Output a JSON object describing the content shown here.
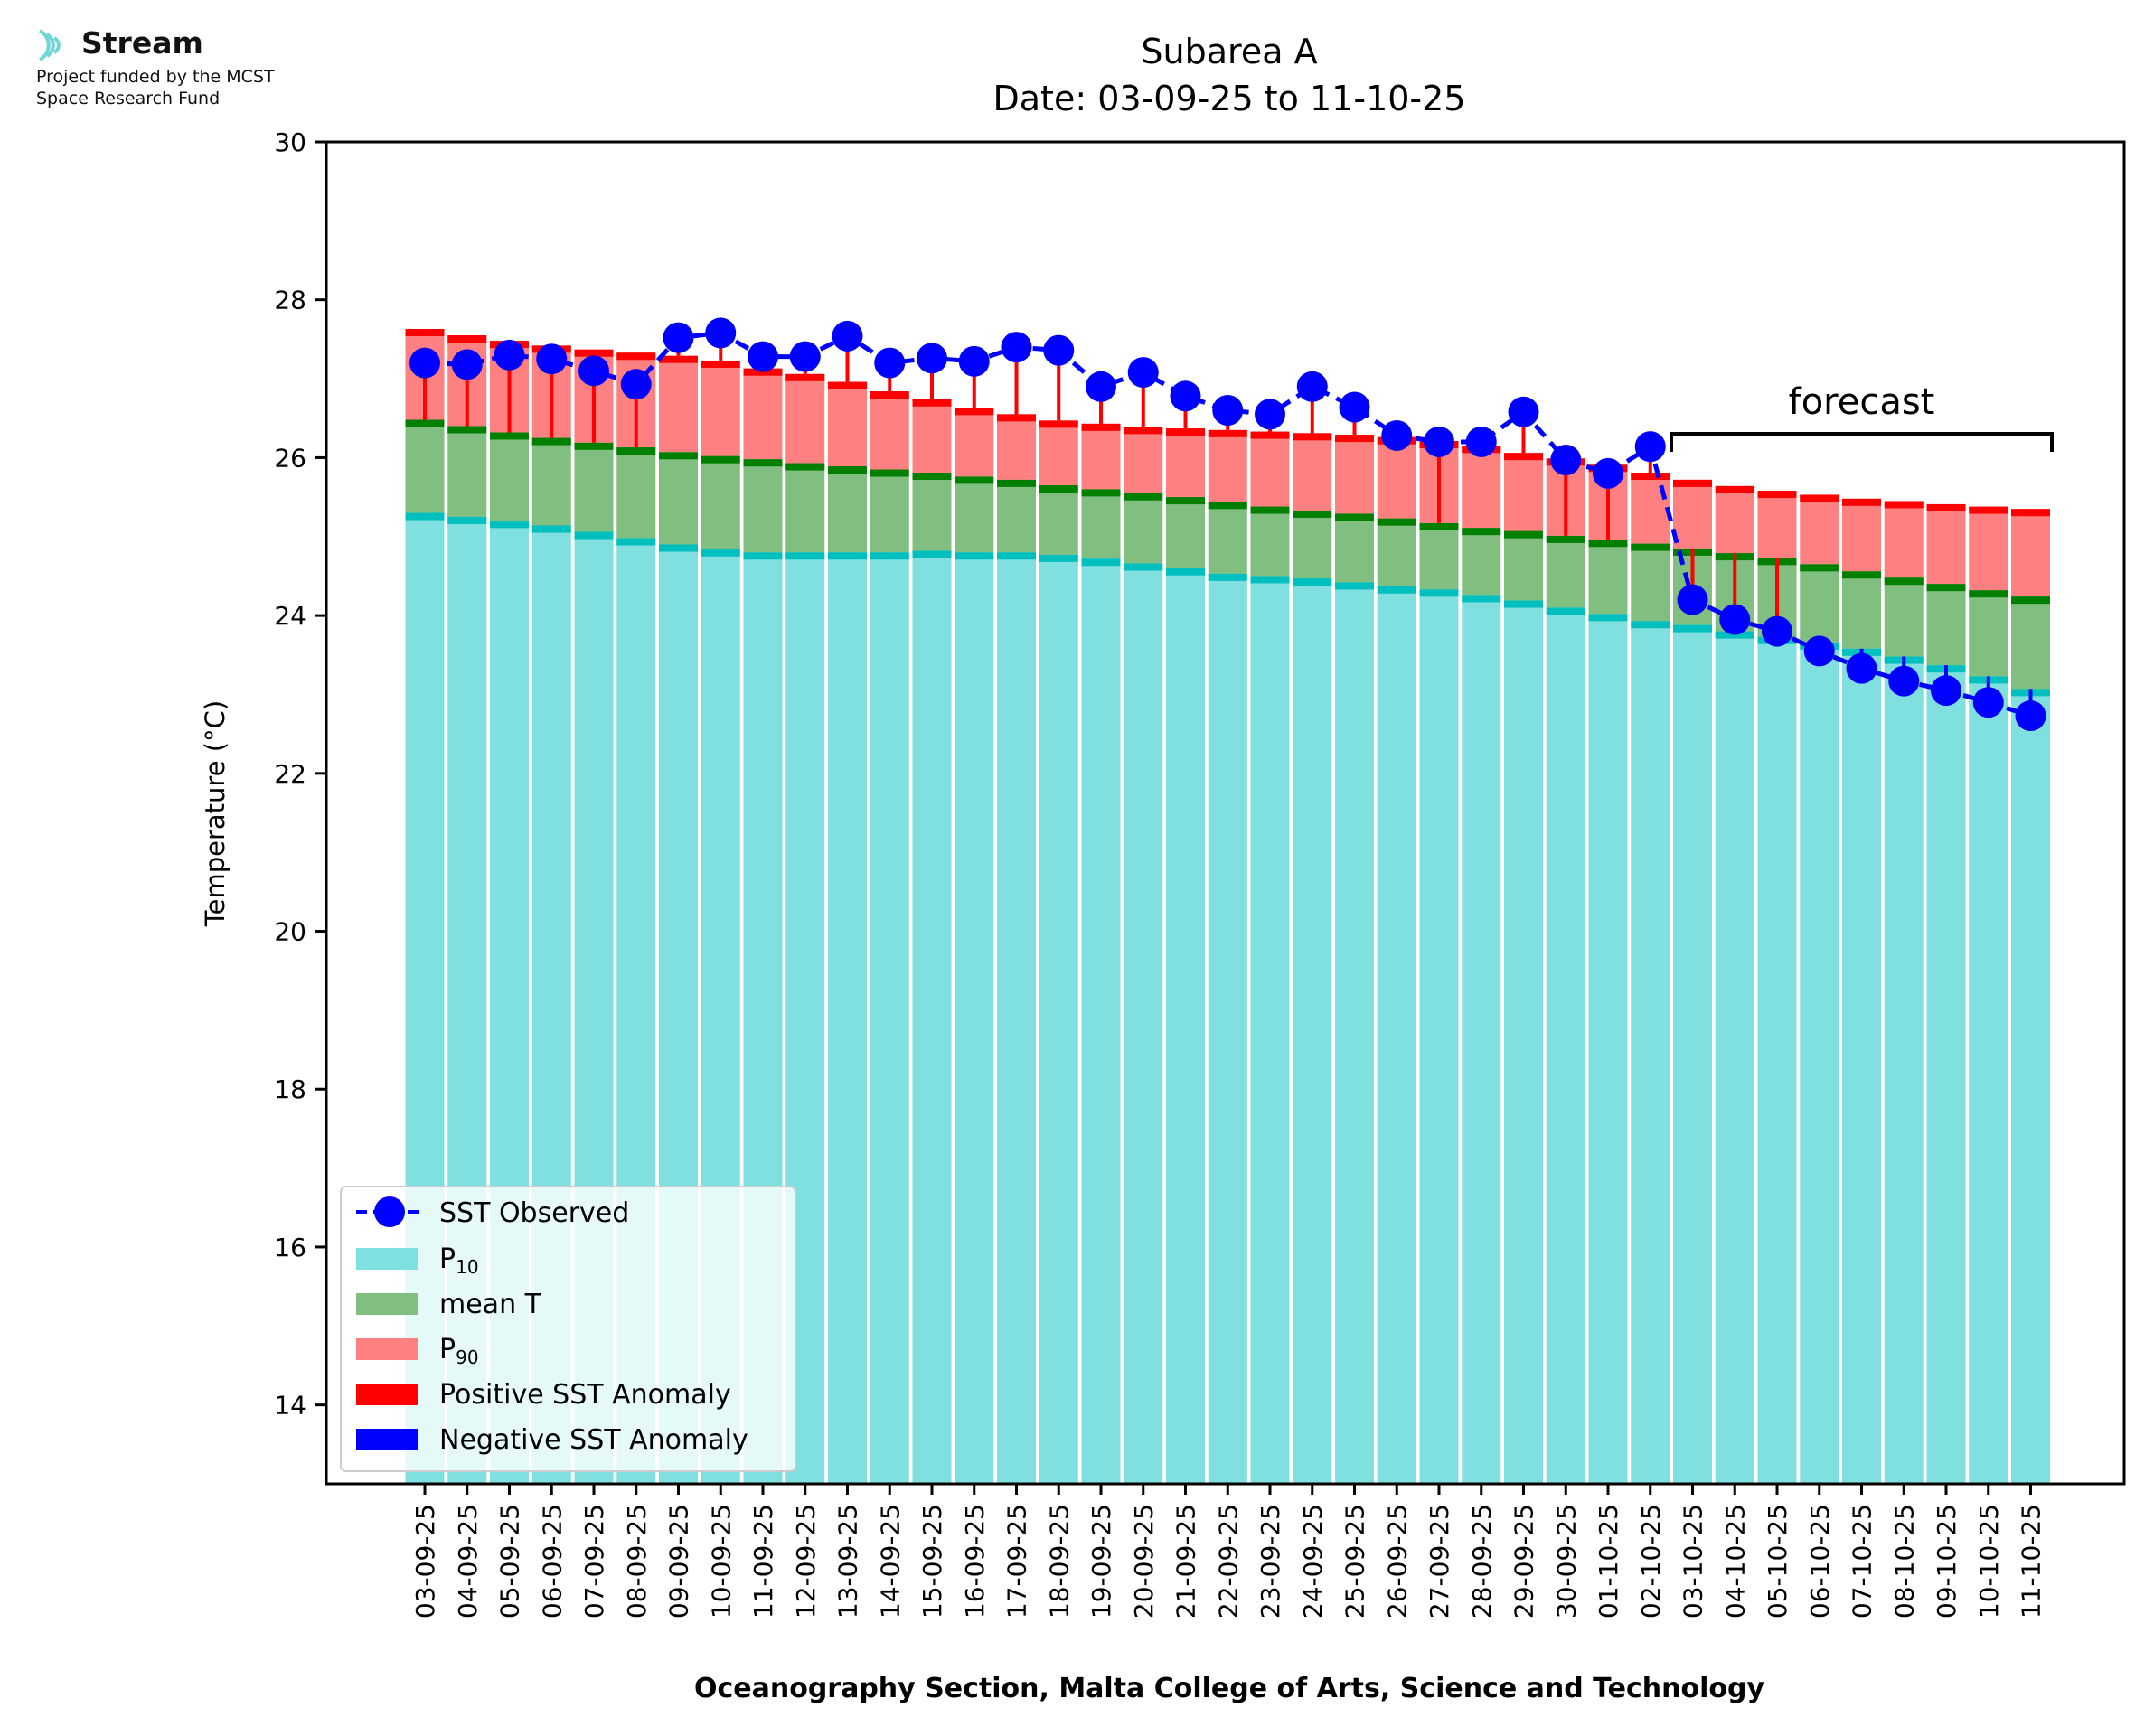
{
  "logo": {
    "name": "Stream",
    "funding_line1": "Project funded by the MCST",
    "funding_line2": "Space Research Fund"
  },
  "chart_data": {
    "type": "bar",
    "title": "Subarea A",
    "subtitle": "Date: 03-09-25 to 11-10-25",
    "xlabel": "Oceanography Section, Malta College of Arts, Science and Technology",
    "ylabel": "Temperature (°C)",
    "ylim": [
      13,
      30
    ],
    "yticks": [
      14,
      16,
      18,
      20,
      22,
      24,
      26,
      28,
      30
    ],
    "grid": false,
    "legend_position": "bottom-left",
    "forecast_label": "forecast",
    "forecast_range": [
      "03-10-25",
      "11-10-25"
    ],
    "categories": [
      "03-09-25",
      "04-09-25",
      "05-09-25",
      "06-09-25",
      "07-09-25",
      "08-09-25",
      "09-09-25",
      "10-09-25",
      "11-09-25",
      "12-09-25",
      "13-09-25",
      "14-09-25",
      "15-09-25",
      "16-09-25",
      "17-09-25",
      "18-09-25",
      "19-09-25",
      "20-09-25",
      "21-09-25",
      "22-09-25",
      "23-09-25",
      "24-09-25",
      "25-09-25",
      "26-09-25",
      "27-09-25",
      "28-09-25",
      "29-09-25",
      "30-09-25",
      "01-10-25",
      "02-10-25",
      "03-10-25",
      "04-10-25",
      "05-10-25",
      "06-10-25",
      "07-10-25",
      "08-10-25",
      "09-10-25",
      "10-10-25",
      "11-10-25"
    ],
    "series": [
      {
        "name": "SST Observed",
        "values": [
          27.2,
          27.18,
          27.3,
          27.25,
          27.1,
          26.93,
          27.52,
          27.58,
          27.28,
          27.28,
          27.54,
          27.2,
          27.26,
          27.22,
          27.4,
          27.36,
          26.9,
          27.08,
          26.78,
          26.6,
          26.55,
          26.9,
          26.64,
          26.28,
          26.2,
          26.2,
          26.58,
          25.97,
          25.8,
          26.14,
          24.2,
          23.95,
          23.8,
          23.55,
          23.33,
          23.17,
          23.05,
          22.9,
          22.73
        ]
      },
      {
        "name": "P10",
        "values": [
          25.3,
          25.25,
          25.2,
          25.14,
          25.06,
          24.98,
          24.9,
          24.84,
          24.8,
          24.8,
          24.8,
          24.8,
          24.82,
          24.8,
          24.8,
          24.77,
          24.72,
          24.66,
          24.6,
          24.53,
          24.5,
          24.47,
          24.42,
          24.37,
          24.33,
          24.26,
          24.19,
          24.1,
          24.02,
          23.93,
          23.88,
          23.8,
          23.73,
          23.66,
          23.58,
          23.48,
          23.37,
          23.23,
          23.07
        ]
      },
      {
        "name": "mean T",
        "values": [
          26.48,
          26.4,
          26.32,
          26.25,
          26.19,
          26.13,
          26.07,
          26.02,
          25.98,
          25.93,
          25.89,
          25.85,
          25.81,
          25.76,
          25.72,
          25.65,
          25.6,
          25.55,
          25.5,
          25.44,
          25.38,
          25.33,
          25.29,
          25.23,
          25.17,
          25.11,
          25.07,
          25.01,
          24.96,
          24.91,
          24.85,
          24.79,
          24.73,
          24.65,
          24.56,
          24.48,
          24.4,
          24.32,
          24.24
        ]
      },
      {
        "name": "P90",
        "values": [
          27.63,
          27.55,
          27.48,
          27.42,
          27.37,
          27.33,
          27.29,
          27.23,
          27.13,
          27.06,
          26.96,
          26.84,
          26.74,
          26.63,
          26.55,
          26.47,
          26.43,
          26.39,
          26.37,
          26.35,
          26.33,
          26.31,
          26.29,
          26.26,
          26.21,
          26.15,
          26.06,
          25.99,
          25.91,
          25.81,
          25.72,
          25.64,
          25.58,
          25.53,
          25.48,
          25.45,
          25.41,
          25.38,
          25.35
        ]
      }
    ],
    "anomaly_legend": [
      "Positive SST Anomaly",
      "Negative SST Anomaly"
    ],
    "colors": {
      "p10": "#80dfdf",
      "p10_edge": "#00bfbf",
      "mean": "#80bf80",
      "mean_edge": "#007f00",
      "p90": "#ff8080",
      "p90_edge": "#ff0000",
      "observed": "#0000ff",
      "positive_anomaly": "#ff0000",
      "negative_anomaly": "#0000ff"
    },
    "legend_labels": {
      "observed": "SST Observed",
      "p10_main": "P",
      "p10_sub": "10",
      "mean": "mean T",
      "p90_main": "P",
      "p90_sub": "90",
      "positive": "Positive SST Anomaly",
      "negative": "Negative SST Anomaly"
    }
  }
}
